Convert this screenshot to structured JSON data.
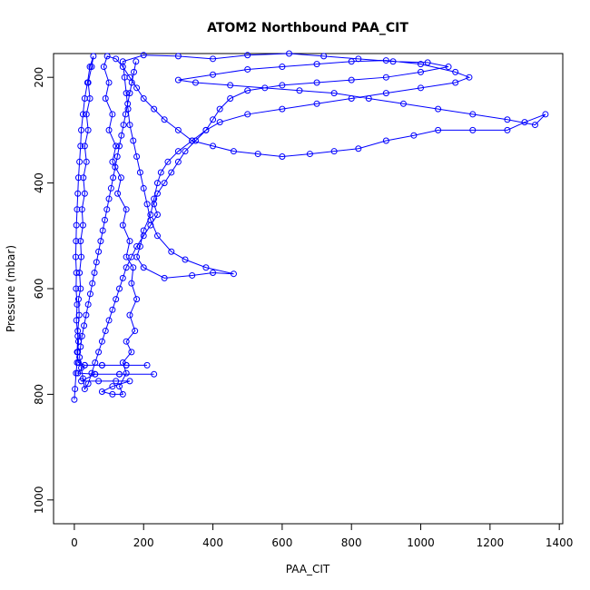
{
  "chart_data": {
    "type": "scatter",
    "title": "ATOM2 Northbound PAA_CIT",
    "xlabel": "PAA_CIT",
    "ylabel": "Pressure (mbar)",
    "xlim": [
      -60,
      1410
    ],
    "ylim": [
      1045,
      155
    ],
    "y_reversed": true,
    "x_ticks": [
      0,
      200,
      400,
      600,
      800,
      1000,
      1200,
      1400
    ],
    "y_ticks": [
      200,
      400,
      600,
      800,
      1000
    ],
    "grid": false,
    "legend": "none",
    "colors": {
      "series": "#0000ff"
    },
    "series": [
      {
        "style": "line-points",
        "points": [
          [
            0,
            810
          ],
          [
            2,
            790
          ],
          [
            5,
            760
          ],
          [
            8,
            740
          ],
          [
            10,
            720
          ],
          [
            12,
            700
          ],
          [
            10,
            680
          ],
          [
            14,
            650
          ],
          [
            12,
            620
          ],
          [
            18,
            600
          ],
          [
            15,
            570
          ],
          [
            20,
            540
          ],
          [
            18,
            510
          ],
          [
            25,
            480
          ],
          [
            22,
            450
          ],
          [
            30,
            420
          ],
          [
            26,
            390
          ],
          [
            35,
            360
          ],
          [
            30,
            330
          ],
          [
            40,
            300
          ],
          [
            35,
            270
          ],
          [
            45,
            240
          ],
          [
            40,
            210
          ],
          [
            50,
            180
          ],
          [
            55,
            160
          ],
          [
            45,
            180
          ],
          [
            38,
            210
          ],
          [
            30,
            240
          ],
          [
            25,
            270
          ],
          [
            20,
            300
          ],
          [
            18,
            330
          ],
          [
            15,
            360
          ],
          [
            12,
            390
          ],
          [
            10,
            420
          ],
          [
            8,
            450
          ],
          [
            6,
            480
          ],
          [
            5,
            510
          ],
          [
            4,
            540
          ],
          [
            6,
            570
          ],
          [
            5,
            600
          ],
          [
            8,
            630
          ],
          [
            6,
            660
          ],
          [
            10,
            690
          ],
          [
            8,
            720
          ],
          [
            12,
            740
          ],
          [
            30,
            745
          ],
          [
            80,
            745
          ],
          [
            150,
            745
          ],
          [
            210,
            745
          ],
          [
            150,
            745
          ],
          [
            80,
            745
          ],
          [
            30,
            745
          ],
          [
            10,
            760
          ],
          [
            60,
            762
          ],
          [
            130,
            762
          ],
          [
            230,
            762
          ],
          [
            130,
            762
          ],
          [
            60,
            762
          ],
          [
            20,
            775
          ],
          [
            70,
            775
          ],
          [
            120,
            775
          ],
          [
            160,
            775
          ],
          [
            110,
            785
          ],
          [
            80,
            795
          ],
          [
            110,
            800
          ],
          [
            140,
            800
          ],
          [
            130,
            785
          ],
          [
            150,
            760
          ],
          [
            140,
            740
          ],
          [
            165,
            720
          ],
          [
            150,
            700
          ],
          [
            175,
            680
          ],
          [
            160,
            650
          ],
          [
            180,
            620
          ],
          [
            165,
            590
          ],
          [
            170,
            560
          ],
          [
            150,
            540
          ],
          [
            160,
            510
          ],
          [
            140,
            480
          ],
          [
            150,
            450
          ],
          [
            125,
            420
          ],
          [
            135,
            390
          ],
          [
            110,
            360
          ],
          [
            120,
            330
          ],
          [
            100,
            300
          ],
          [
            110,
            270
          ],
          [
            90,
            240
          ],
          [
            100,
            210
          ],
          [
            85,
            180
          ],
          [
            95,
            160
          ],
          [
            120,
            165
          ],
          [
            140,
            180
          ],
          [
            160,
            200
          ],
          [
            180,
            220
          ],
          [
            200,
            240
          ],
          [
            230,
            260
          ],
          [
            260,
            280
          ],
          [
            300,
            300
          ],
          [
            340,
            320
          ],
          [
            400,
            330
          ],
          [
            460,
            340
          ],
          [
            530,
            345
          ],
          [
            600,
            350
          ],
          [
            680,
            345
          ],
          [
            750,
            340
          ],
          [
            820,
            335
          ],
          [
            900,
            320
          ],
          [
            980,
            310
          ],
          [
            1050,
            300
          ],
          [
            1150,
            300
          ],
          [
            1250,
            300
          ],
          [
            1300,
            285
          ],
          [
            1360,
            270
          ],
          [
            1330,
            290
          ],
          [
            1250,
            280
          ],
          [
            1150,
            270
          ],
          [
            1050,
            260
          ],
          [
            950,
            250
          ],
          [
            850,
            240
          ],
          [
            750,
            230
          ],
          [
            650,
            225
          ],
          [
            550,
            220
          ],
          [
            450,
            215
          ],
          [
            350,
            210
          ],
          [
            300,
            205
          ],
          [
            400,
            195
          ],
          [
            500,
            185
          ],
          [
            600,
            180
          ],
          [
            700,
            175
          ],
          [
            800,
            170
          ],
          [
            900,
            168
          ],
          [
            1000,
            175
          ],
          [
            1100,
            190
          ],
          [
            1140,
            200
          ],
          [
            1100,
            210
          ],
          [
            1000,
            220
          ],
          [
            900,
            230
          ],
          [
            800,
            240
          ],
          [
            700,
            250
          ],
          [
            600,
            260
          ],
          [
            500,
            270
          ],
          [
            420,
            285
          ],
          [
            380,
            300
          ],
          [
            340,
            320
          ],
          [
            300,
            340
          ],
          [
            270,
            360
          ],
          [
            250,
            380
          ],
          [
            240,
            400
          ],
          [
            230,
            430
          ],
          [
            220,
            460
          ],
          [
            200,
            490
          ],
          [
            190,
            520
          ],
          [
            180,
            540
          ],
          [
            200,
            560
          ],
          [
            260,
            580
          ],
          [
            340,
            575
          ],
          [
            400,
            570
          ],
          [
            460,
            572
          ],
          [
            380,
            560
          ],
          [
            320,
            545
          ],
          [
            280,
            530
          ],
          [
            240,
            500
          ],
          [
            220,
            470
          ],
          [
            210,
            440
          ],
          [
            200,
            410
          ],
          [
            190,
            380
          ],
          [
            180,
            350
          ],
          [
            170,
            320
          ],
          [
            160,
            290
          ],
          [
            155,
            260
          ],
          [
            150,
            230
          ],
          [
            145,
            200
          ],
          [
            140,
            170
          ],
          [
            200,
            158
          ],
          [
            300,
            160
          ],
          [
            400,
            165
          ],
          [
            500,
            158
          ],
          [
            620,
            155
          ],
          [
            720,
            160
          ],
          [
            820,
            165
          ],
          [
            920,
            170
          ],
          [
            1020,
            172
          ],
          [
            1080,
            180
          ],
          [
            1000,
            190
          ],
          [
            900,
            200
          ],
          [
            800,
            205
          ],
          [
            700,
            210
          ],
          [
            600,
            215
          ],
          [
            500,
            225
          ],
          [
            450,
            240
          ],
          [
            420,
            260
          ],
          [
            400,
            280
          ],
          [
            380,
            300
          ],
          [
            350,
            320
          ],
          [
            320,
            340
          ],
          [
            300,
            360
          ],
          [
            280,
            380
          ],
          [
            260,
            400
          ],
          [
            240,
            420
          ],
          [
            230,
            440
          ],
          [
            240,
            460
          ],
          [
            220,
            480
          ],
          [
            200,
            500
          ],
          [
            180,
            520
          ],
          [
            165,
            540
          ],
          [
            150,
            560
          ],
          [
            140,
            580
          ],
          [
            130,
            600
          ],
          [
            120,
            620
          ],
          [
            110,
            640
          ],
          [
            100,
            660
          ],
          [
            90,
            680
          ],
          [
            80,
            700
          ],
          [
            70,
            720
          ],
          [
            60,
            740
          ],
          [
            50,
            760
          ],
          [
            40,
            780
          ],
          [
            30,
            790
          ],
          [
            25,
            770
          ],
          [
            20,
            750
          ],
          [
            15,
            730
          ],
          [
            18,
            710
          ],
          [
            22,
            690
          ],
          [
            28,
            670
          ],
          [
            34,
            650
          ],
          [
            40,
            630
          ],
          [
            46,
            610
          ],
          [
            52,
            590
          ],
          [
            58,
            570
          ],
          [
            64,
            550
          ],
          [
            70,
            530
          ],
          [
            76,
            510
          ],
          [
            82,
            490
          ],
          [
            88,
            470
          ],
          [
            94,
            450
          ],
          [
            100,
            430
          ],
          [
            106,
            410
          ],
          [
            112,
            390
          ],
          [
            118,
            370
          ],
          [
            124,
            350
          ],
          [
            130,
            330
          ],
          [
            136,
            310
          ],
          [
            142,
            290
          ],
          [
            148,
            270
          ],
          [
            154,
            250
          ],
          [
            160,
            230
          ],
          [
            166,
            210
          ],
          [
            172,
            190
          ],
          [
            178,
            170
          ]
        ]
      }
    ]
  }
}
